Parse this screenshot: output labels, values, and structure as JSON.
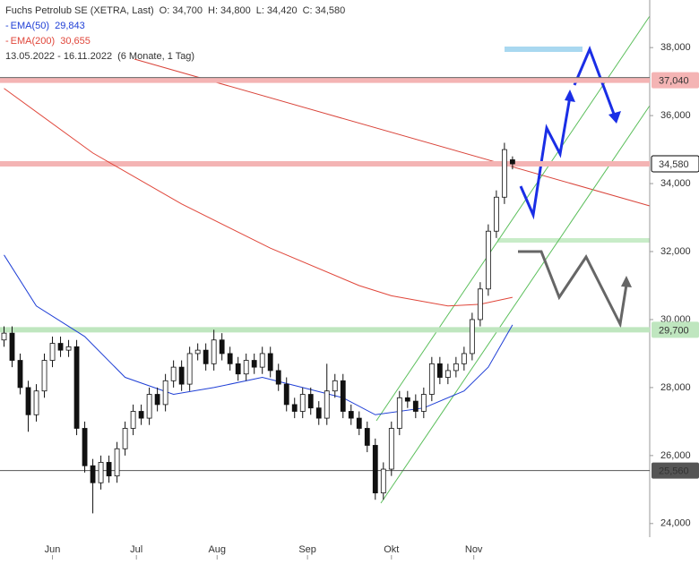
{
  "chart_data": {
    "type": "candlestick",
    "title": "Fuchs Petrolub SE (XETRA, Last)",
    "info": [
      "O: 34,700",
      "H: 34,800",
      "L: 34,420",
      "C: 34,580"
    ],
    "period": "13.05.2022 - 16.11.2022",
    "period_note": "(6 Monate, 1 Tag)",
    "open": [
      29400,
      29600,
      28800,
      28000,
      27200,
      27900,
      28800,
      29300,
      29100,
      29200,
      26800,
      25700,
      25200,
      25800,
      25400,
      26200,
      26800,
      27300,
      27100,
      27800,
      27500,
      28200,
      28600,
      28100,
      29000,
      29100,
      28700,
      29400,
      29000,
      28700,
      28400,
      28800,
      28600,
      29000,
      28500,
      28100,
      27500,
      27300,
      27800,
      27400,
      27100,
      27900,
      28200,
      27300,
      27100,
      26800,
      26300,
      24900,
      25600,
      26800,
      27700,
      27600,
      27300,
      27800,
      28700,
      28300,
      28500,
      28700,
      29000,
      30000,
      30900,
      32600,
      33600,
      34700
    ],
    "high": [
      29800,
      29800,
      29000,
      28200,
      28100,
      29000,
      29500,
      29500,
      29400,
      29400,
      27000,
      25900,
      26000,
      26000,
      26400,
      27000,
      27500,
      27500,
      28000,
      28000,
      28400,
      28800,
      28800,
      29200,
      29300,
      29300,
      29700,
      29600,
      29200,
      28900,
      29000,
      29000,
      29200,
      29200,
      28700,
      28300,
      27700,
      28000,
      28000,
      27600,
      28700,
      28400,
      28400,
      27500,
      27300,
      27000,
      26500,
      25800,
      27000,
      27900,
      27900,
      27800,
      28000,
      28900,
      28900,
      28700,
      28900,
      29200,
      30200,
      31100,
      32800,
      33800,
      35200,
      34800
    ],
    "low": [
      29200,
      28600,
      27800,
      26700,
      27000,
      27700,
      28600,
      28900,
      28900,
      26600,
      25500,
      24300,
      25000,
      25200,
      25200,
      26000,
      26600,
      26900,
      26900,
      27300,
      27300,
      28000,
      27900,
      27900,
      28800,
      28500,
      28500,
      28800,
      28500,
      28200,
      28200,
      28400,
      28400,
      28300,
      27900,
      27300,
      27100,
      27100,
      27200,
      26900,
      26900,
      27700,
      27100,
      26900,
      26600,
      26100,
      24700,
      24700,
      25400,
      26600,
      27400,
      27100,
      27100,
      27600,
      28100,
      28100,
      28300,
      28500,
      28800,
      29800,
      30700,
      32400,
      33400,
      34420
    ],
    "close": [
      29600,
      28800,
      28000,
      27200,
      27900,
      28800,
      29300,
      29100,
      29200,
      26800,
      25700,
      25200,
      25800,
      25400,
      26200,
      26800,
      27300,
      27100,
      27800,
      27500,
      28200,
      28600,
      28100,
      29000,
      29100,
      28700,
      29400,
      29000,
      28700,
      28400,
      28800,
      28600,
      29000,
      28500,
      28100,
      27500,
      27300,
      27800,
      27400,
      27100,
      27900,
      28200,
      27300,
      27100,
      26800,
      26300,
      24900,
      25600,
      26800,
      27700,
      27600,
      27300,
      27800,
      28700,
      28300,
      28500,
      28700,
      29000,
      30000,
      30900,
      32600,
      33600,
      35000,
      34580
    ],
    "series": [
      {
        "name": "EMA(50)",
        "last_value_label": "29,843",
        "color": "#1f3fd6",
        "x": [
          0,
          4,
          10,
          15,
          21,
          26,
          32,
          37,
          42,
          46,
          52,
          57,
          60,
          63
        ],
        "values": [
          31900,
          30400,
          29500,
          28300,
          27800,
          28000,
          28300,
          28000,
          27700,
          27200,
          27400,
          27900,
          28600,
          29843
        ]
      },
      {
        "name": "EMA(200)",
        "last_value_label": "30,655",
        "color": "#e0463a",
        "x": [
          0,
          11,
          22,
          33,
          44,
          48,
          55,
          59,
          63
        ],
        "values": [
          36800,
          34900,
          33400,
          32100,
          31000,
          30700,
          30400,
          30450,
          30655
        ]
      }
    ],
    "levels": [
      {
        "value": 37040,
        "label": "37,040",
        "color": "#f4b4b4"
      },
      {
        "value": 34580,
        "label": "34,580",
        "color": "#f4b4b4"
      },
      {
        "value": 29700,
        "label": "29,700",
        "color": "#bfe6bf"
      },
      {
        "value": 25560,
        "label": "25,560",
        "color": "#555"
      }
    ],
    "xlim": [
      -0.5,
      80
    ],
    "ylim": [
      23600,
      39400
    ],
    "xticks": [
      {
        "value": 6,
        "label": "Jun"
      },
      {
        "value": 16.4,
        "label": "Jul"
      },
      {
        "value": 26.4,
        "label": "Aug"
      },
      {
        "value": 37.6,
        "label": "Sep"
      },
      {
        "value": 48,
        "label": "Okt"
      },
      {
        "value": 58.2,
        "label": "Nov"
      }
    ],
    "yticks": [
      {
        "value": 24000,
        "label": "24,000"
      },
      {
        "value": 26000,
        "label": "26,000"
      },
      {
        "value": 28000,
        "label": "28,000"
      },
      {
        "value": 30000,
        "label": "30,000"
      },
      {
        "value": 32000,
        "label": "32,000"
      },
      {
        "value": 34000,
        "label": "34,000"
      },
      {
        "value": 36000,
        "label": "36,000"
      },
      {
        "value": 38000,
        "label": "38,000"
      }
    ]
  }
}
